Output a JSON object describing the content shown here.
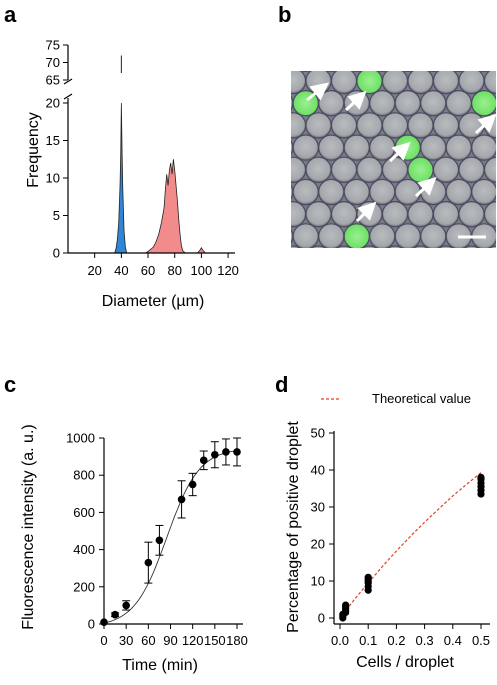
{
  "panels": {
    "a": "a",
    "b": "b",
    "c": "c",
    "d": "d"
  },
  "chart_data": [
    {
      "panel": "a",
      "type": "histogram",
      "xlabel": "Diameter (µm)",
      "ylabel": "Frequency",
      "xlim": [
        0,
        125
      ],
      "ylim": [
        0,
        75
      ],
      "broken_axis": {
        "lower": [
          0,
          20
        ],
        "upper": [
          65,
          75
        ]
      },
      "xticks": [
        "20",
        "40",
        "60",
        "80",
        "100",
        "120"
      ],
      "yticks_lower": [
        "0",
        "5",
        "10",
        "15",
        "20"
      ],
      "yticks_upper": [
        "65",
        "70",
        "75"
      ],
      "series": [
        {
          "color": "#2f86d6",
          "x": [
            35,
            36,
            37,
            38,
            39,
            39.5,
            40,
            40.5,
            41,
            42,
            43,
            44
          ],
          "values": [
            0,
            0.6,
            1.8,
            4,
            9,
            13,
            20,
            14,
            9,
            3,
            0.8,
            0
          ]
        },
        {
          "color": "#f28c8c",
          "x": [
            58,
            60,
            62,
            64,
            66,
            68,
            70,
            72,
            73,
            74,
            75,
            76,
            77,
            78,
            79,
            80,
            81,
            82,
            83,
            84,
            85,
            86,
            88
          ],
          "values": [
            0,
            0.2,
            0.5,
            0.8,
            1.5,
            2.5,
            4,
            6,
            8.5,
            10.5,
            9,
            11,
            12,
            10.5,
            12.5,
            11,
            9,
            7,
            4.5,
            2.5,
            1,
            0.3,
            0
          ]
        },
        {
          "color": "#f28c8c",
          "x": [
            97,
            99,
            100,
            101,
            103
          ],
          "values": [
            0,
            0.4,
            0.7,
            0.4,
            0
          ]
        }
      ]
    },
    {
      "panel": "b",
      "type": "image",
      "scale_bar": true
    },
    {
      "panel": "c",
      "type": "scatter",
      "xlabel": "Time (min)",
      "ylabel": "Fluorescence intensity (a. u.)",
      "xlim": [
        0,
        190
      ],
      "ylim": [
        0,
        1000
      ],
      "xticks": [
        "0",
        "30",
        "60",
        "90",
        "120",
        "150",
        "180"
      ],
      "yticks": [
        "0",
        "200",
        "400",
        "600",
        "800",
        "1000"
      ],
      "x": [
        0,
        15,
        30,
        60,
        75,
        90,
        105,
        120,
        135,
        150,
        165,
        180
      ],
      "y": [
        10,
        50,
        100,
        330,
        450,
        450,
        670,
        750,
        880,
        910,
        925,
        925
      ],
      "x_points": [
        0,
        15,
        30,
        60,
        75,
        105,
        120,
        135,
        150,
        165
      ],
      "y_points": [
        10,
        50,
        100,
        330,
        450,
        670,
        750,
        880,
        910,
        925
      ],
      "errors": [
        0,
        10,
        25,
        110,
        80,
        100,
        60,
        50,
        70,
        70
      ],
      "fit_curve": true
    },
    {
      "panel": "d",
      "type": "scatter",
      "xlabel": "Cells / droplet",
      "ylabel": "Percentage of positive droplet",
      "xlim": [
        0,
        0.52
      ],
      "ylim": [
        0,
        50
      ],
      "xticks": [
        "0.0",
        "0.1",
        "0.2",
        "0.3",
        "0.4",
        "0.5"
      ],
      "yticks": [
        "0",
        "10",
        "20",
        "30",
        "40",
        "50"
      ],
      "legend": {
        "label": "Theoretical value",
        "position": "top"
      },
      "points": [
        {
          "x": 0.01,
          "y": 0
        },
        {
          "x": 0.01,
          "y": 0.5
        },
        {
          "x": 0.01,
          "y": 1
        },
        {
          "x": 0.02,
          "y": 1.5
        },
        {
          "x": 0.02,
          "y": 2
        },
        {
          "x": 0.02,
          "y": 2.5
        },
        {
          "x": 0.02,
          "y": 3
        },
        {
          "x": 0.02,
          "y": 3.5
        },
        {
          "x": 0.1,
          "y": 7.5
        },
        {
          "x": 0.1,
          "y": 8.5
        },
        {
          "x": 0.1,
          "y": 9.5
        },
        {
          "x": 0.1,
          "y": 10
        },
        {
          "x": 0.1,
          "y": 10.5
        },
        {
          "x": 0.1,
          "y": 11
        },
        {
          "x": 0.5,
          "y": 33.5
        },
        {
          "x": 0.5,
          "y": 34.5
        },
        {
          "x": 0.5,
          "y": 35.5
        },
        {
          "x": 0.5,
          "y": 36.5
        },
        {
          "x": 0.5,
          "y": 37.5
        },
        {
          "x": 0.5,
          "y": 38
        }
      ],
      "theoretical_x": [
        0,
        0.05,
        0.1,
        0.15,
        0.2,
        0.25,
        0.3,
        0.35,
        0.4,
        0.45,
        0.5
      ],
      "theoretical_y": [
        0,
        4.9,
        9.5,
        13.9,
        18.1,
        22.1,
        25.9,
        29.5,
        33.0,
        36.2,
        39.3
      ],
      "theoretical_color": "#e0412b"
    }
  ]
}
